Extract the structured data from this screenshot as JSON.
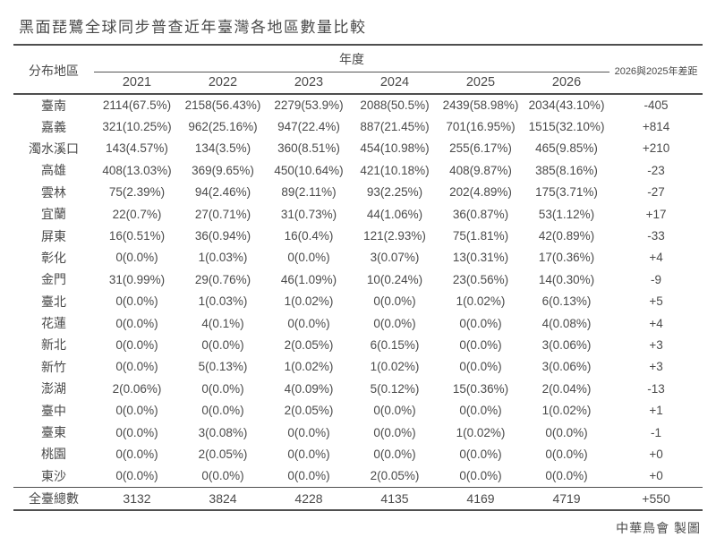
{
  "title": "黑面琵鷺全球同步普查近年臺灣各地區數量比較",
  "header": {
    "region": "分布地區",
    "year_group": "年度",
    "diff": "2026與2025年差距"
  },
  "chart_data": {
    "type": "table",
    "title": "黑面琵鷺全球同步普查近年臺灣各地區數量比較",
    "years": [
      "2021",
      "2022",
      "2023",
      "2024",
      "2025",
      "2026"
    ],
    "rows": [
      {
        "region": "臺南",
        "values": [
          "2114(67.5%)",
          "2158(56.43%)",
          "2279(53.9%)",
          "2088(50.5%)",
          "2439(58.98%)",
          "2034(43.10%)"
        ],
        "diff": "-405"
      },
      {
        "region": "嘉義",
        "values": [
          "321(10.25%)",
          "962(25.16%)",
          "947(22.4%)",
          "887(21.45%)",
          "701(16.95%)",
          "1515(32.10%)"
        ],
        "diff": "+814"
      },
      {
        "region": "濁水溪口",
        "values": [
          "143(4.57%)",
          "134(3.5%)",
          "360(8.51%)",
          "454(10.98%)",
          "255(6.17%)",
          "465(9.85%)"
        ],
        "diff": "+210"
      },
      {
        "region": "高雄",
        "values": [
          "408(13.03%)",
          "369(9.65%)",
          "450(10.64%)",
          "421(10.18%)",
          "408(9.87%)",
          "385(8.16%)"
        ],
        "diff": "-23"
      },
      {
        "region": "雲林",
        "values": [
          "75(2.39%)",
          "94(2.46%)",
          "89(2.11%)",
          "93(2.25%)",
          "202(4.89%)",
          "175(3.71%)"
        ],
        "diff": "-27"
      },
      {
        "region": "宜蘭",
        "values": [
          "22(0.7%)",
          "27(0.71%)",
          "31(0.73%)",
          "44(1.06%)",
          "36(0.87%)",
          "53(1.12%)"
        ],
        "diff": "+17"
      },
      {
        "region": "屏東",
        "values": [
          "16(0.51%)",
          "36(0.94%)",
          "16(0.4%)",
          "121(2.93%)",
          "75(1.81%)",
          "42(0.89%)"
        ],
        "diff": "-33"
      },
      {
        "region": "彰化",
        "values": [
          "0(0.0%)",
          "1(0.03%)",
          "0(0.0%)",
          "3(0.07%)",
          "13(0.31%)",
          "17(0.36%)"
        ],
        "diff": "+4"
      },
      {
        "region": "金門",
        "values": [
          "31(0.99%)",
          "29(0.76%)",
          "46(1.09%)",
          "10(0.24%)",
          "23(0.56%)",
          "14(0.30%)"
        ],
        "diff": "-9"
      },
      {
        "region": "臺北",
        "values": [
          "0(0.0%)",
          "1(0.03%)",
          "1(0.02%)",
          "0(0.0%)",
          "1(0.02%)",
          "6(0.13%)"
        ],
        "diff": "+5"
      },
      {
        "region": "花蓮",
        "values": [
          "0(0.0%)",
          "4(0.1%)",
          "0(0.0%)",
          "0(0.0%)",
          "0(0.0%)",
          "4(0.08%)"
        ],
        "diff": "+4"
      },
      {
        "region": "新北",
        "values": [
          "0(0.0%)",
          "0(0.0%)",
          "2(0.05%)",
          "6(0.15%)",
          "0(0.0%)",
          "3(0.06%)"
        ],
        "diff": "+3"
      },
      {
        "region": "新竹",
        "values": [
          "0(0.0%)",
          "5(0.13%)",
          "1(0.02%)",
          "1(0.02%)",
          "0(0.0%)",
          "3(0.06%)"
        ],
        "diff": "+3"
      },
      {
        "region": "澎湖",
        "values": [
          "2(0.06%)",
          "0(0.0%)",
          "4(0.09%)",
          "5(0.12%)",
          "15(0.36%)",
          "2(0.04%)"
        ],
        "diff": "-13"
      },
      {
        "region": "臺中",
        "values": [
          "0(0.0%)",
          "0(0.0%)",
          "2(0.05%)",
          "0(0.0%)",
          "0(0.0%)",
          "1(0.02%)"
        ],
        "diff": "+1"
      },
      {
        "region": "臺東",
        "values": [
          "0(0.0%)",
          "3(0.08%)",
          "0(0.0%)",
          "0(0.0%)",
          "1(0.02%)",
          "0(0.0%)"
        ],
        "diff": "-1"
      },
      {
        "region": "桃園",
        "values": [
          "0(0.0%)",
          "2(0.05%)",
          "0(0.0%)",
          "0(0.0%)",
          "0(0.0%)",
          "0(0.0%)"
        ],
        "diff": "+0"
      },
      {
        "region": "東沙",
        "values": [
          "0(0.0%)",
          "0(0.0%)",
          "0(0.0%)",
          "2(0.05%)",
          "0(0.0%)",
          "0(0.0%)"
        ],
        "diff": "+0"
      }
    ],
    "total": {
      "region": "全臺總數",
      "values": [
        "3132",
        "3824",
        "4228",
        "4135",
        "4169",
        "4719"
      ],
      "diff": "+550"
    }
  },
  "footer": {
    "credit": "中華鳥會 製圖"
  },
  "colors": {
    "text": "#4a4a4a",
    "line": "#4f4f4f"
  }
}
